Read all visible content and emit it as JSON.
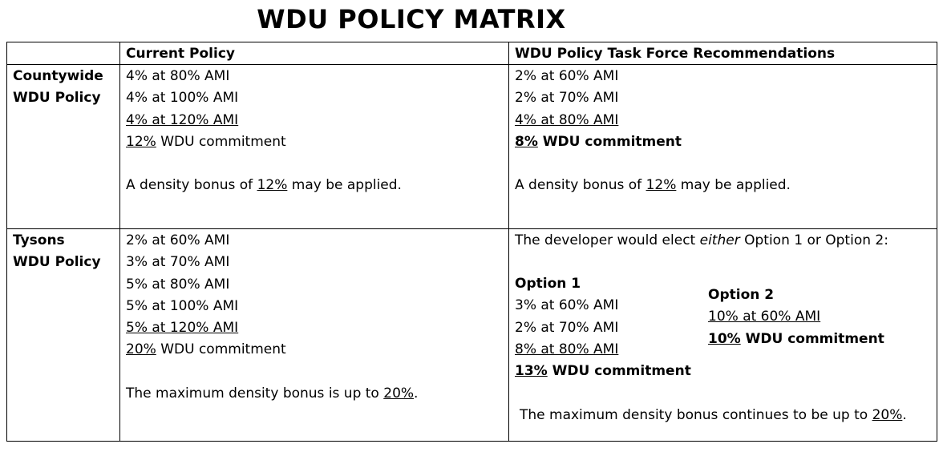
{
  "title": "WDU POLICY MATRIX",
  "headers": {
    "blank": "",
    "current": "Current Policy",
    "recommended": "WDU Policy Task Force Recommendations"
  },
  "countywide": {
    "label_line1": "Countywide",
    "label_line2": "WDU Policy",
    "current": {
      "l1": "4% at 80% AMI",
      "l2": "4% at 100% AMI",
      "l3": "4% at 120% AMI",
      "commit_pct": "12%",
      "commit_text": " WDU commitment",
      "bonus_pre": "A density bonus of ",
      "bonus_pct": "12%",
      "bonus_post": " may be applied."
    },
    "recommended": {
      "l1": "2% at 60% AMI",
      "l2": "2% at 70% AMI",
      "l3": "4% at 80% AMI",
      "commit_pct": "8%",
      "commit_text": " WDU commitment",
      "bonus_pre": "A density bonus of ",
      "bonus_pct": "12%",
      "bonus_post": " may be applied."
    }
  },
  "tysons": {
    "label_line1": "Tysons",
    "label_line2": "WDU Policy",
    "current": {
      "l1": "2% at 60% AMI",
      "l2": "3% at 70% AMI",
      "l3": "5% at 80% AMI",
      "l4": "5% at 100% AMI",
      "l5": "5% at 120% AMI",
      "commit_pct": "20%",
      "commit_text": " WDU commitment",
      "bonus_pre": "The maximum density bonus is up to ",
      "bonus_pct": "20%",
      "bonus_post": "."
    },
    "recommended": {
      "intro_pre": "The developer would elect ",
      "intro_em": "either",
      "intro_post": " Option 1  or Option 2:",
      "option1": {
        "title": "Option 1",
        "l1": "3% at 60% AMI",
        "l2": "2% at 70% AMI",
        "l3": "8% at 80% AMI",
        "commit_pct": "13%",
        "commit_text": " WDU commitment"
      },
      "option2": {
        "title": "Option 2",
        "l1": "10% at 60% AMI",
        "commit_pct": "10%",
        "commit_text": " WDU commitment"
      },
      "bonus_pre": "The maximum density bonus continues to be up to ",
      "bonus_pct": "20%",
      "bonus_post": "."
    }
  }
}
